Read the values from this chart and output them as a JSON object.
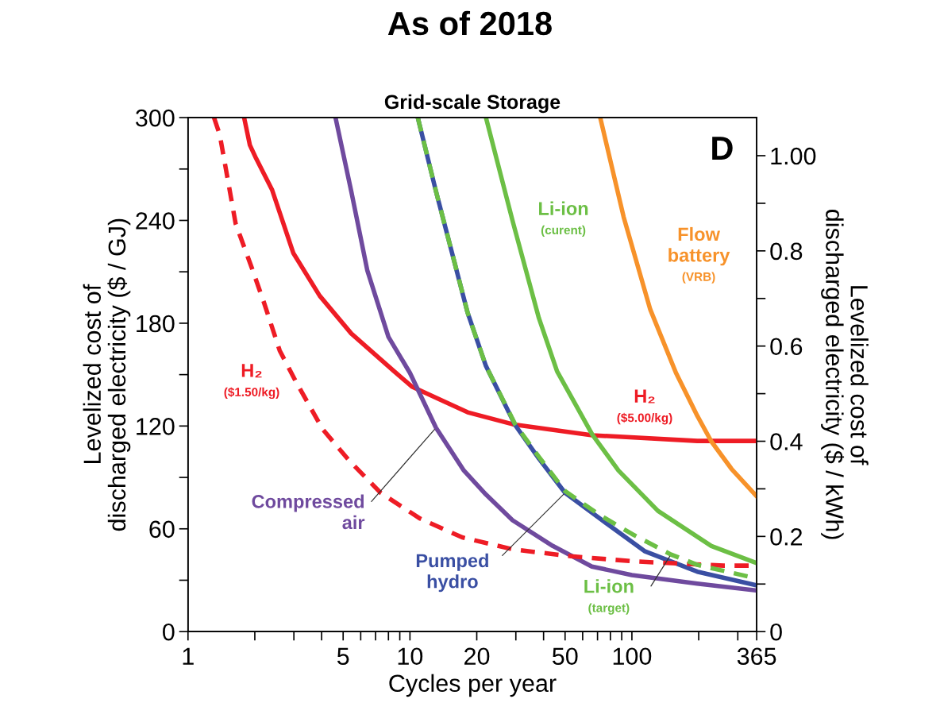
{
  "chart_data": {
    "type": "line",
    "title": "As of 2018",
    "subtitle": "Grid-scale Storage",
    "xlabel": "Cycles per year",
    "ylabel": "Levelized cost of\ndischarged electricity ($ / GJ)",
    "y2label": "Levelized cost of\ndischarged electricity ($ / kWh)",
    "annotations": [
      "D"
    ],
    "log": "x",
    "grid": false,
    "legend": false,
    "marker": "none",
    "xlim": [
      1,
      365
    ],
    "ylim": [
      0,
      300
    ],
    "y2lim": [
      0,
      1.08
    ],
    "xticks": [
      1,
      {
        "value": 2,
        "label": null
      },
      {
        "value": 3,
        "label": null
      },
      {
        "value": 4,
        "label": null
      },
      5,
      {
        "value": 6,
        "label": null
      },
      {
        "value": 7,
        "label": null
      },
      {
        "value": 8,
        "label": null
      },
      {
        "value": 9,
        "label": null
      },
      10,
      20,
      {
        "value": 30,
        "label": null
      },
      {
        "value": 40,
        "label": null
      },
      50,
      {
        "value": 60,
        "label": null
      },
      {
        "value": 70,
        "label": null
      },
      {
        "value": 80,
        "label": null
      },
      {
        "value": 90,
        "label": null
      },
      100,
      {
        "value": 200,
        "label": null
      },
      {
        "value": 300,
        "label": null
      },
      365
    ],
    "yticks": [
      0,
      {
        "value": 30,
        "label": null
      },
      60,
      {
        "value": 90,
        "label": null
      },
      120,
      {
        "value": 150,
        "label": null
      },
      180,
      {
        "value": 210,
        "label": null
      },
      240,
      {
        "value": 270,
        "label": null
      },
      300
    ],
    "y2ticks": [
      0,
      {
        "value": 0.1,
        "label": null
      },
      0.2,
      {
        "value": 0.3,
        "label": null
      },
      0.4,
      {
        "value": 0.5,
        "label": null
      },
      0.6,
      {
        "value": 0.7,
        "label": null
      },
      0.8,
      {
        "value": 0.9,
        "label": null
      },
      {
        "value": 1.0,
        "label": "1.00"
      }
    ],
    "series": [
      {
        "name": "H₂\n($1.50/kg)",
        "color": "#ee1c25",
        "line_style": "dashed",
        "x": [
          1.31,
          1.39,
          1.64,
          1.93,
          2.2,
          2.59,
          3.06,
          4.05,
          5.31,
          7.38,
          11.1,
          17.2,
          29.1,
          53.2,
          102,
          259,
          365
        ],
        "values": [
          300,
          290,
          238,
          213,
          192,
          164,
          146,
          118,
          100,
          81,
          66,
          55,
          48,
          44,
          41,
          38.5,
          38.5
        ]
      },
      {
        "name": "H₂\n($5.00/kg)",
        "color": "#ee1c25",
        "line_style": "solid",
        "x": [
          1.79,
          1.9,
          2.03,
          2.39,
          2.98,
          3.92,
          5.44,
          8.48,
          10.2,
          18.2,
          29.1,
          66.3,
          197,
          365
        ],
        "values": [
          300,
          284,
          276,
          258,
          221,
          196,
          174,
          152,
          143,
          128,
          121,
          114.6,
          111.3,
          111.3
        ]
      },
      {
        "name": "Compressed\nair",
        "color": "#6f4a9e",
        "line_style": "solid",
        "x": [
          4.62,
          5.44,
          6.42,
          8.0,
          10,
          13.1,
          17.5,
          22,
          29,
          44,
          66,
          100,
          197,
          365
        ],
        "values": [
          300,
          257,
          211,
          172,
          151,
          119,
          94,
          80,
          65,
          50,
          38,
          33,
          28,
          24
        ]
      },
      {
        "name": "Pumped\nhydro",
        "color": "#3a4fa3",
        "line_style": "solid",
        "x": [
          10.85,
          13.1,
          18.2,
          22,
          29.8,
          38.1,
          50,
          71.7,
          114,
          197,
          365
        ],
        "values": [
          300,
          257,
          186,
          155,
          120.5,
          101,
          81,
          66,
          47,
          35,
          27
        ]
      },
      {
        "name": "Li-ion\n(target)",
        "color": "#6cbf45",
        "line_style": "dashed",
        "x": [
          10.85,
          13.1,
          18.2,
          22,
          29.8,
          38.1,
          50,
          71.7,
          100,
          150,
          197,
          365
        ],
        "values": [
          300,
          257,
          186,
          155,
          121,
          102,
          82,
          68,
          57,
          45,
          39,
          31
        ]
      },
      {
        "name": "Li-ion\n(curent)",
        "color": "#6cbf45",
        "line_style": "solid",
        "x": [
          22,
          29.1,
          38.1,
          46,
          66.3,
          87,
          131,
          228,
          365
        ],
        "values": [
          300,
          239,
          183,
          152,
          115,
          94,
          70.5,
          50,
          40
        ]
      },
      {
        "name": "Flow\nbattery\n(VRB)",
        "color": "#f7922a",
        "line_style": "solid",
        "x": [
          72,
          91.8,
          121,
          158,
          197,
          228,
          281,
          365
        ],
        "values": [
          300,
          242,
          188,
          151,
          126,
          111,
          95,
          79
        ]
      }
    ]
  }
}
